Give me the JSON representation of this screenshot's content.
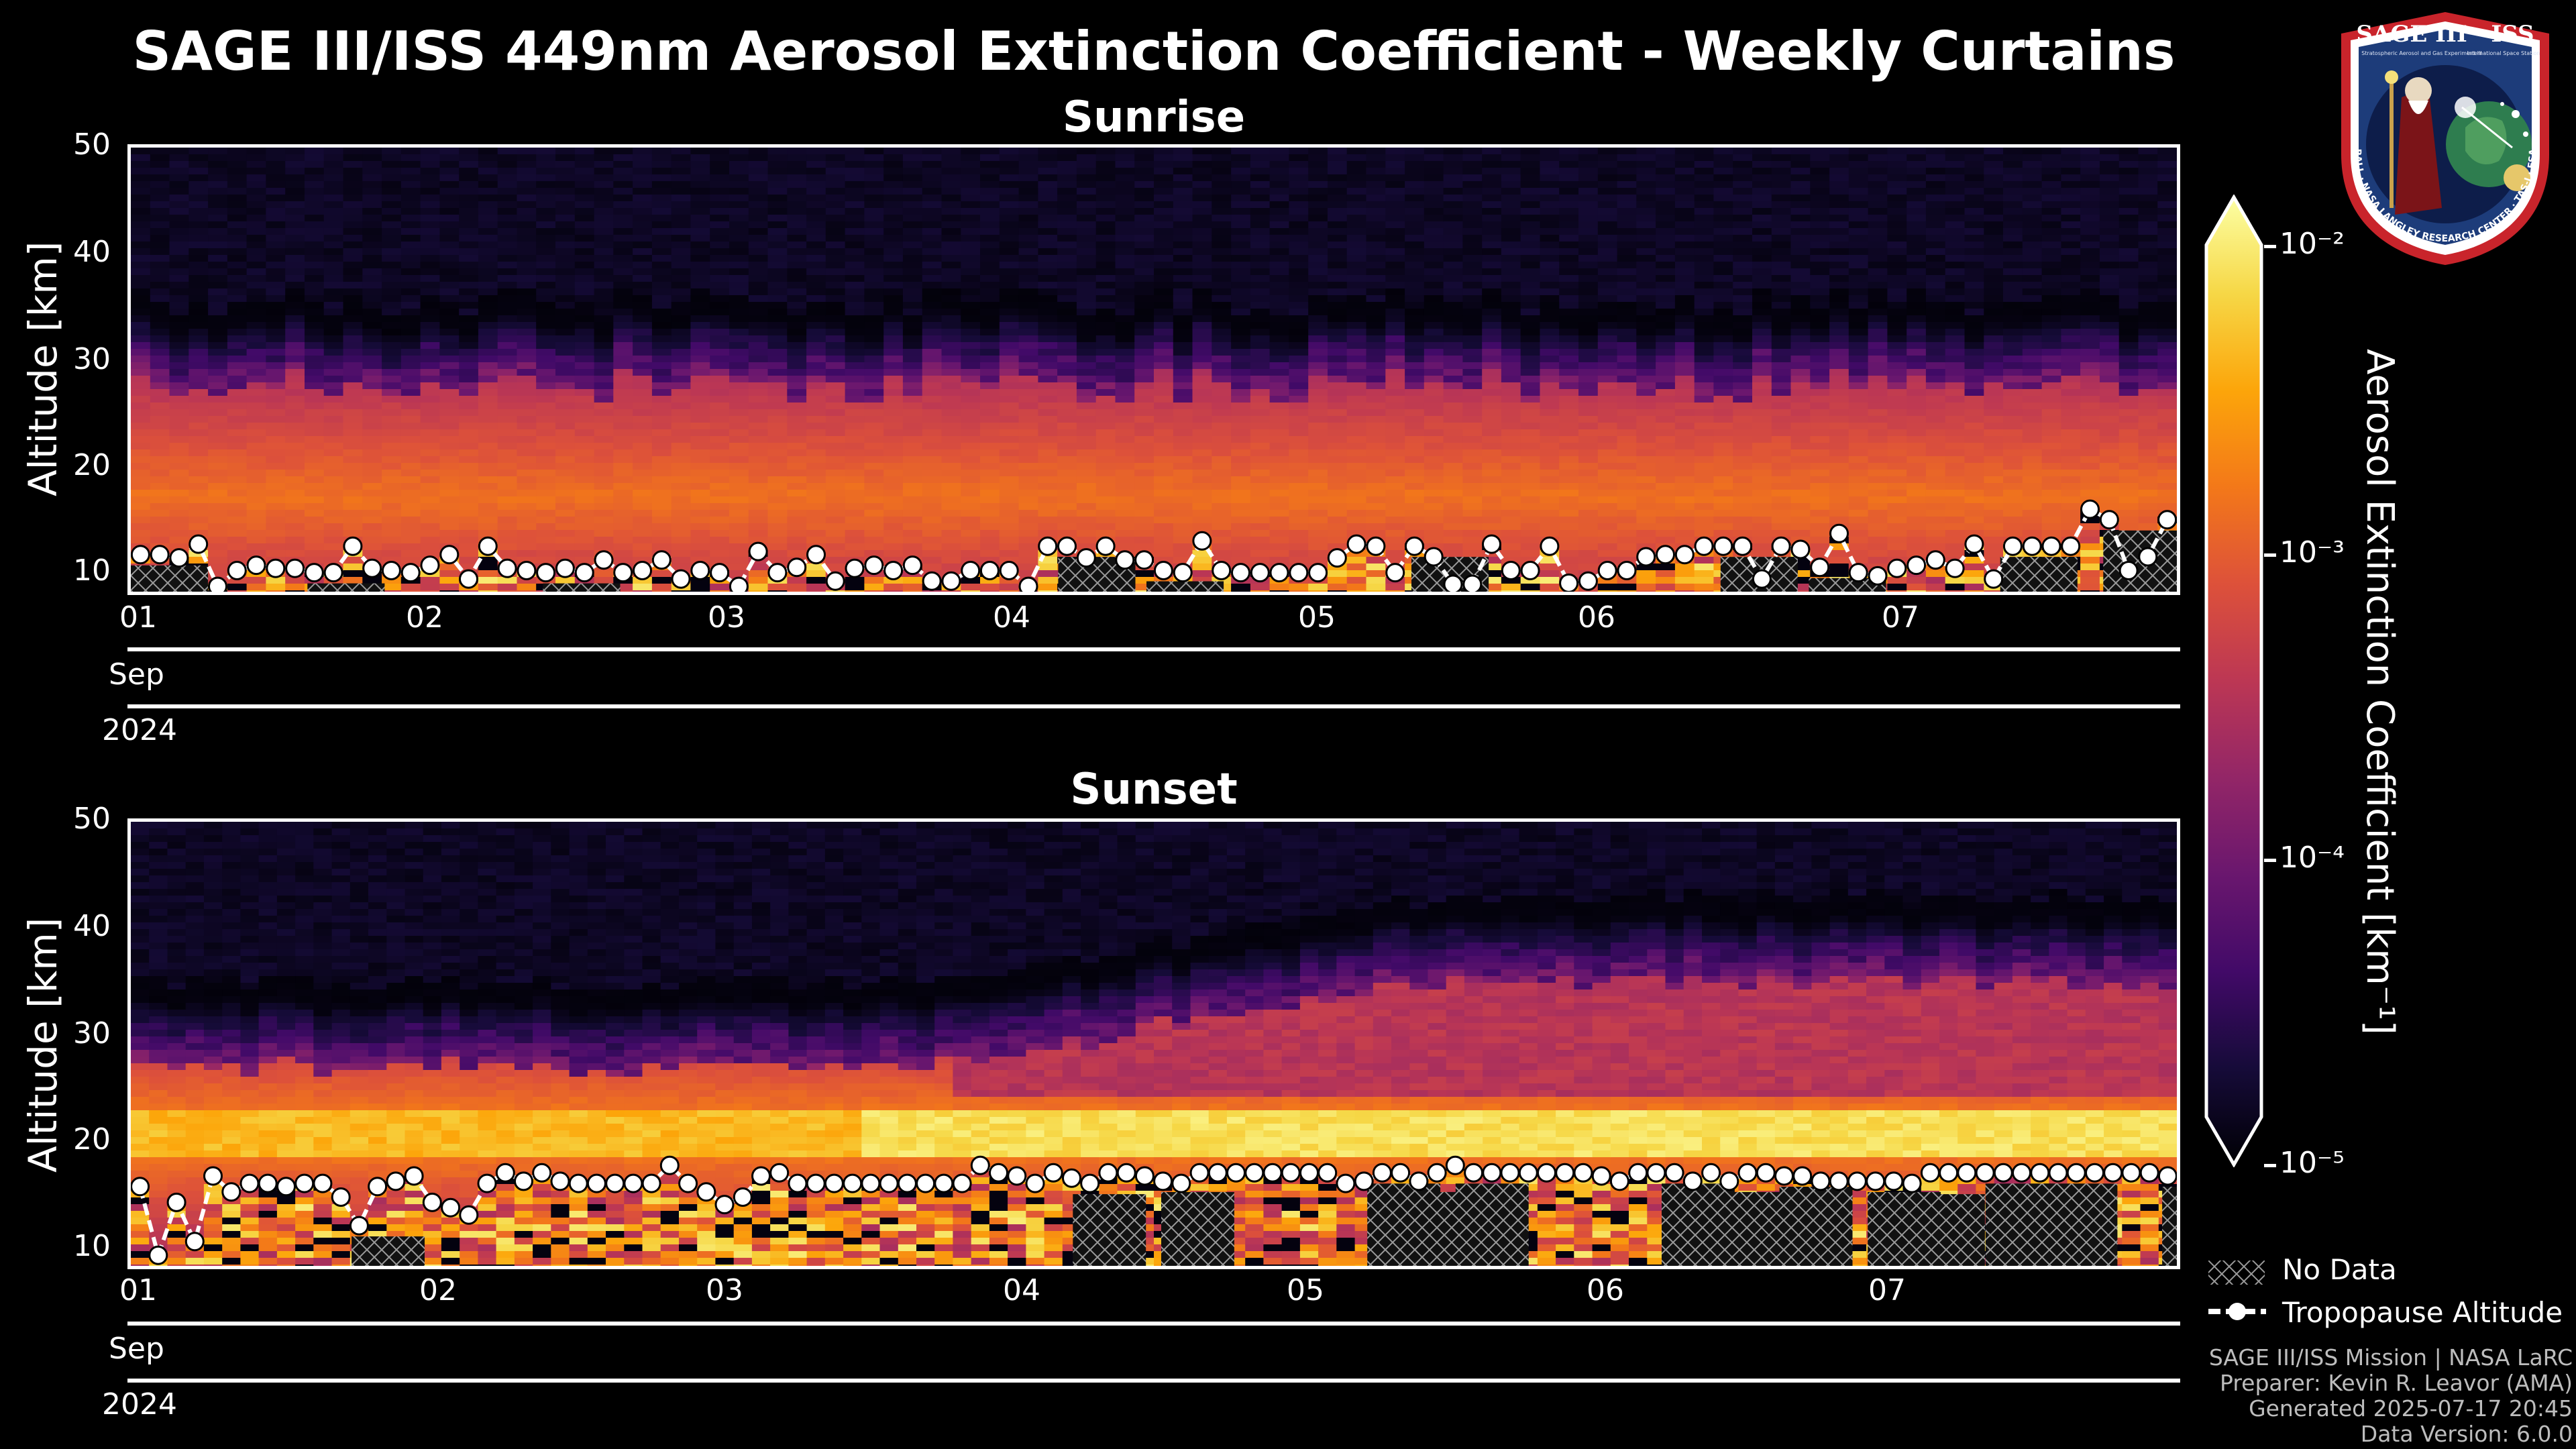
{
  "chart_data": {
    "type": "heatmap",
    "title": "SAGE III/ISS 449nm Aerosol Extinction Coefficient - Weekly Curtains",
    "colorbar": {
      "label": "Aerosol Extinction Coefficient [km⁻¹]",
      "scale": "log",
      "range": [
        1e-05,
        0.01
      ],
      "ticks": [
        "10⁻²",
        "10⁻³",
        "10⁻⁴",
        "10⁻⁵"
      ],
      "colormap": "inferno"
    },
    "panels": [
      {
        "name": "Sunrise",
        "ylabel": "Altitude [km]",
        "ylim": [
          8,
          50
        ],
        "yticks": [
          "50",
          "40",
          "30",
          "20",
          "10"
        ],
        "xticks": [
          "01",
          "02",
          "03",
          "04",
          "05",
          "06",
          "07"
        ],
        "xlim_days": [
          1,
          7.95
        ],
        "month": "Sep",
        "year": "2024",
        "tropopause_km": [
          11.5,
          11.5,
          11.2,
          12.5,
          8.5,
          10,
          10.5,
          10.2,
          10.2,
          9.8,
          9.8,
          12.3,
          10.2,
          10,
          9.8,
          10.5,
          11.5,
          9.2,
          12.3,
          10.2,
          10,
          9.8,
          10.2,
          9.8,
          11,
          9.8,
          10,
          11,
          9.2,
          10,
          9.8,
          8.5,
          11.8,
          9.8,
          10.3,
          11.5,
          9,
          10.2,
          10.5,
          10,
          10.5,
          9,
          9,
          10,
          10,
          10,
          8.5,
          12.3,
          12.3,
          11.2,
          12.3,
          11,
          11,
          10,
          9.8,
          12.8,
          10,
          9.8,
          9.8,
          9.8,
          9.8,
          9.8,
          11.2,
          12.5,
          12.3,
          9.8,
          12.3,
          11.3,
          8.7,
          8.7,
          12.5,
          10,
          10,
          12.3,
          8.8,
          9,
          10,
          10,
          11.3,
          11.5,
          11.5,
          12.3,
          12.3,
          12.3,
          9.2,
          12.3,
          12,
          10.3,
          13.5,
          9.8,
          9.5,
          10.2,
          10.5,
          11,
          10.2,
          12.5,
          9.2,
          12.3,
          12.3,
          12.3,
          12.3,
          15.8,
          14.8,
          10,
          11.3,
          14.8
        ],
        "no_data_days": [
          1.0,
          1.6,
          2.4,
          4.15,
          4.45,
          5.35,
          6.4,
          6.7,
          7.35,
          7.7
        ]
      },
      {
        "name": "Sunset",
        "ylabel": "Altitude [km]",
        "ylim": [
          8,
          50
        ],
        "yticks": [
          "50",
          "40",
          "30",
          "20",
          "10"
        ],
        "xticks": [
          "01",
          "02",
          "03",
          "04",
          "05",
          "06",
          "07"
        ],
        "xlim_days": [
          1,
          7.95
        ],
        "month": "Sep",
        "year": "2024",
        "tropopause_km": [
          15.5,
          9,
          14,
          10.3,
          16.5,
          15,
          15.8,
          15.8,
          15.5,
          15.8,
          15.8,
          14.5,
          11.8,
          15.5,
          16,
          16.5,
          14,
          13.5,
          12.8,
          15.8,
          16.8,
          16,
          16.8,
          16,
          15.8,
          15.8,
          15.8,
          15.8,
          15.8,
          17.5,
          15.8,
          15,
          13.8,
          14.5,
          16.5,
          16.8,
          15.8,
          15.8,
          15.8,
          15.8,
          15.8,
          15.8,
          15.8,
          15.8,
          15.8,
          15.8,
          17.5,
          16.8,
          16.5,
          15.8,
          16.8,
          16.3,
          15.8,
          16.8,
          16.8,
          16.5,
          16,
          15.8,
          16.8,
          16.8,
          16.8,
          16.8,
          16.8,
          16.8,
          16.8,
          16.8,
          15.8,
          16,
          16.8,
          16.8,
          16,
          16.8,
          17.5,
          16.8,
          16.8,
          16.8,
          16.8,
          16.8,
          16.8,
          16.8,
          16.5,
          16,
          16.8,
          16.8,
          16.8,
          16,
          16.8,
          16,
          16.8,
          16.8,
          16.5,
          16.5,
          16,
          16,
          16,
          16,
          16,
          15.8,
          16.8,
          16.8,
          16.8,
          16.8,
          16.8,
          16.8,
          16.8,
          16.8,
          16.8,
          16.8,
          16.8,
          16.8,
          16.8,
          16.5
        ],
        "no_data_days": [
          1.75,
          4.2,
          4.5,
          5.2,
          5.35,
          5.5,
          6.2,
          6.4,
          6.6,
          6.9,
          7.05,
          7.3,
          7.5,
          7.9
        ]
      }
    ],
    "legend": [
      {
        "label": "No Data",
        "style": "hatch"
      },
      {
        "label": "Tropopause Altitude",
        "style": "dashed-line-with-dots"
      }
    ]
  },
  "footer": {
    "line1": "SAGE III/ISS Mission | NASA LaRC",
    "line2": "Preparer: Kevin R. Leavor (AMA)",
    "line3": "Generated 2025-07-17 20:45",
    "line4": "Data Version: 6.0.0"
  },
  "logo": {
    "title": "SAGE III · ISS",
    "subtitle": "Stratospheric Aerosol and Gas Experiment III",
    "iss_text": "International Space Station",
    "ring_text": "BALL · NASA LANGLEY RESEARCH CENTER · TAS-I · ESA"
  },
  "colors": {
    "background": "#000000",
    "tropopause": "#ffffff"
  }
}
